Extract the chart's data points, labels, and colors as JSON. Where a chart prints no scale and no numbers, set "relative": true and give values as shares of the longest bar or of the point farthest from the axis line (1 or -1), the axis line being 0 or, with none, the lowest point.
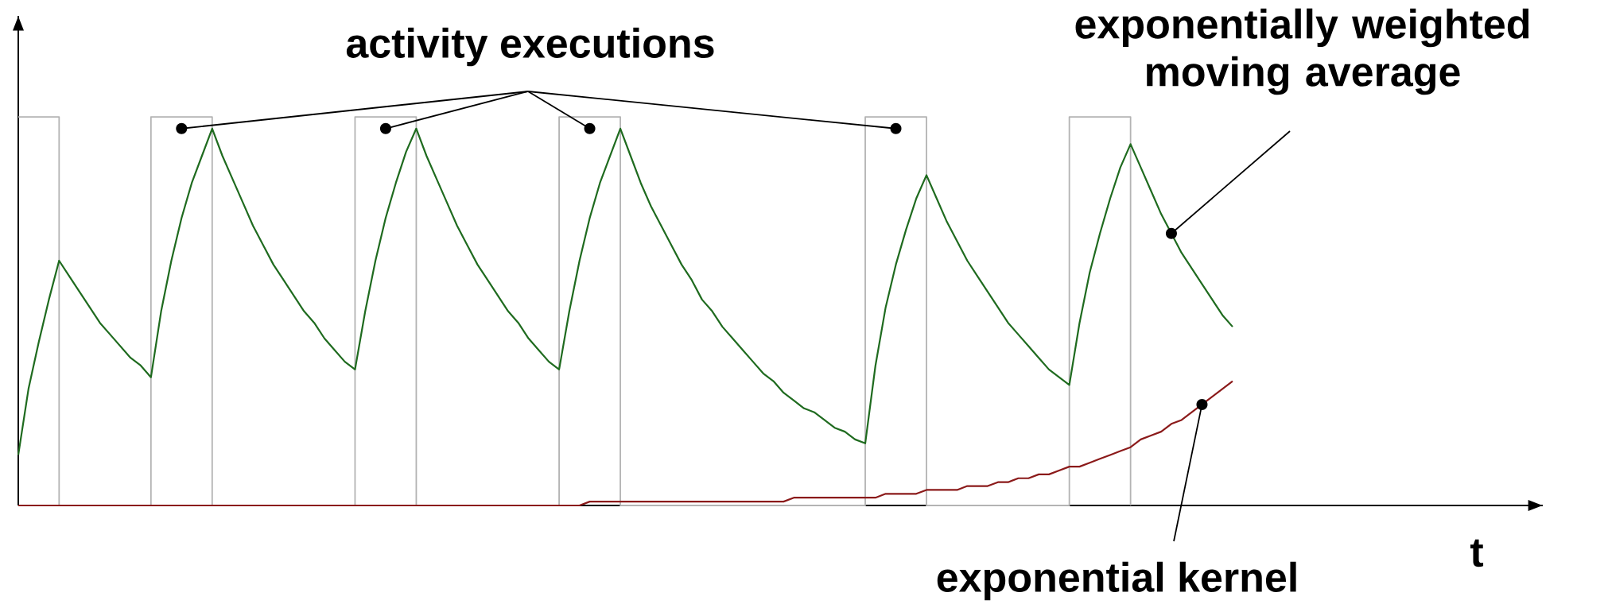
{
  "chart_data": {
    "type": "line",
    "relative": true,
    "marker": "none",
    "categories": [
      null,
      null,
      null,
      null,
      null,
      null,
      null,
      null,
      null,
      null,
      null,
      null,
      null,
      null,
      null,
      null,
      null,
      null,
      null,
      null,
      null,
      null,
      null,
      null,
      null,
      null,
      null,
      null,
      null,
      null,
      null,
      null,
      null,
      null,
      null,
      null,
      null,
      null,
      null,
      null,
      null,
      null,
      null,
      null,
      null,
      null,
      null,
      null,
      null,
      null,
      null,
      null,
      null,
      null,
      null,
      null,
      null,
      null,
      null,
      null,
      null,
      null,
      null,
      null,
      null,
      null,
      null,
      null,
      null,
      null,
      null,
      null,
      null,
      null,
      null,
      null,
      null,
      null,
      null,
      null,
      null,
      null,
      null,
      null,
      null,
      null,
      null,
      null,
      null,
      null,
      null,
      null,
      null,
      null,
      null,
      null,
      null,
      null,
      null,
      null,
      null,
      null,
      null,
      null,
      null,
      null,
      null,
      null,
      null,
      null,
      null,
      null,
      null,
      null,
      null,
      null,
      null,
      null,
      null,
      null
    ],
    "series": [
      {
        "type": "step",
        "color": "#b3b3b3",
        "values": [
          1,
          1,
          1,
          1,
          0,
          0,
          0,
          0,
          0,
          0,
          0,
          0,
          0,
          1,
          1,
          1,
          1,
          1,
          1,
          0,
          0,
          0,
          0,
          0,
          0,
          0,
          0,
          0,
          0,
          0,
          0,
          0,
          0,
          1,
          1,
          1,
          1,
          1,
          1,
          0,
          0,
          0,
          0,
          0,
          0,
          0,
          0,
          0,
          0,
          0,
          0,
          0,
          0,
          1,
          1,
          1,
          1,
          1,
          1,
          0,
          0,
          0,
          0,
          0,
          0,
          0,
          0,
          0,
          0,
          0,
          0,
          0,
          0,
          0,
          0,
          0,
          0,
          0,
          0,
          0,
          0,
          0,
          0,
          1,
          1,
          1,
          1,
          1,
          1,
          0,
          0,
          0,
          0,
          0,
          0,
          0,
          0,
          0,
          0,
          0,
          0,
          0,
          0,
          1,
          1,
          1,
          1,
          1,
          1,
          0,
          null,
          null,
          null,
          null,
          null,
          null,
          null,
          null,
          null,
          null
        ]
      },
      {
        "color": "#1f6b1f",
        "values": [
          0.13,
          0.3,
          0.42,
          0.53,
          0.63,
          0.59,
          0.55,
          0.51,
          0.47,
          0.44,
          0.41,
          0.38,
          0.36,
          0.33,
          0.5,
          0.63,
          0.74,
          0.83,
          0.9,
          0.97,
          0.9,
          0.84,
          0.78,
          0.72,
          0.67,
          0.62,
          0.58,
          0.54,
          0.5,
          0.47,
          0.43,
          0.4,
          0.37,
          0.35,
          0.5,
          0.63,
          0.74,
          0.83,
          0.91,
          0.97,
          0.9,
          0.84,
          0.78,
          0.72,
          0.67,
          0.62,
          0.58,
          0.54,
          0.5,
          0.47,
          0.43,
          0.4,
          0.37,
          0.35,
          0.5,
          0.63,
          0.74,
          0.83,
          0.9,
          0.97,
          0.9,
          0.83,
          0.77,
          0.72,
          0.67,
          0.62,
          0.58,
          0.53,
          0.5,
          0.46,
          0.43,
          0.4,
          0.37,
          0.34,
          0.32,
          0.29,
          0.27,
          0.25,
          0.24,
          0.22,
          0.2,
          0.19,
          0.17,
          0.16,
          0.36,
          0.51,
          0.62,
          0.71,
          0.79,
          0.85,
          0.79,
          0.73,
          0.68,
          0.63,
          0.59,
          0.55,
          0.51,
          0.47,
          0.44,
          0.41,
          0.38,
          0.35,
          0.33,
          0.31,
          0.47,
          0.6,
          0.7,
          0.79,
          0.87,
          0.93,
          0.87,
          0.81,
          0.75,
          0.7,
          0.65,
          0.61,
          0.57,
          0.53,
          0.49,
          0.46
        ]
      },
      {
        "color": "#8b1a1a",
        "values": [
          0,
          0,
          0,
          0,
          0,
          0,
          0,
          0,
          0,
          0,
          0,
          0,
          0,
          0,
          0,
          0,
          0,
          0,
          0,
          0,
          0,
          0,
          0,
          0,
          0,
          0,
          0,
          0,
          0,
          0,
          0,
          0,
          0,
          0,
          0,
          0,
          0,
          0,
          0,
          0,
          0,
          0,
          0,
          0,
          0,
          0,
          0,
          0,
          0,
          0,
          0,
          0,
          0,
          0,
          0,
          0,
          0.01,
          0.01,
          0.01,
          0.01,
          0.01,
          0.01,
          0.01,
          0.01,
          0.01,
          0.01,
          0.01,
          0.01,
          0.01,
          0.01,
          0.01,
          0.01,
          0.01,
          0.01,
          0.01,
          0.01,
          0.02,
          0.02,
          0.02,
          0.02,
          0.02,
          0.02,
          0.02,
          0.02,
          0.02,
          0.03,
          0.03,
          0.03,
          0.03,
          0.04,
          0.04,
          0.04,
          0.04,
          0.05,
          0.05,
          0.05,
          0.06,
          0.06,
          0.07,
          0.07,
          0.08,
          0.08,
          0.09,
          0.1,
          0.1,
          0.11,
          0.12,
          0.13,
          0.14,
          0.15,
          0.17,
          0.18,
          0.19,
          0.21,
          0.22,
          0.24,
          0.26,
          0.28,
          0.3,
          0.32
        ]
      }
    ],
    "annotations": [
      "activity executions",
      "exponentially weighted moving average",
      "exponential kernel",
      "t"
    ]
  }
}
